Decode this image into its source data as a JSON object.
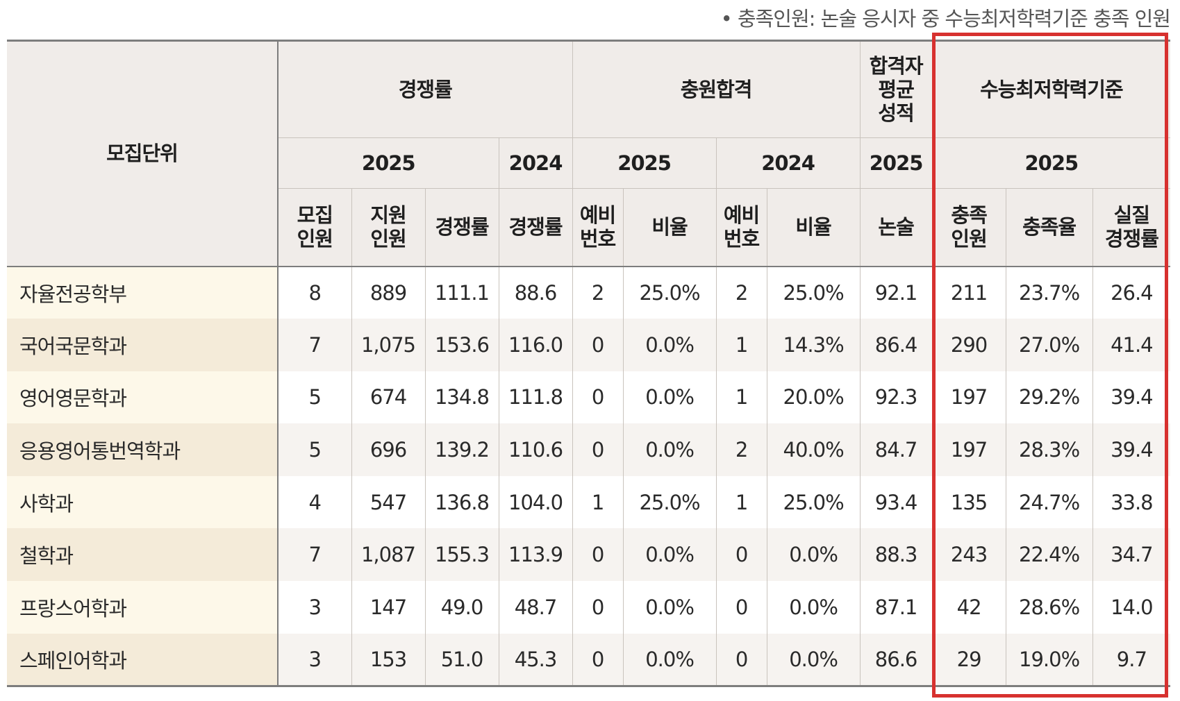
{
  "note": "• 충족인원: 논술 응시자 중 수능최저학력기준 충족 인원",
  "header": {
    "unit": "모집단위",
    "groups": [
      {
        "label": "경쟁률"
      },
      {
        "label": "충원합격"
      },
      {
        "label_lines": [
          "합격자",
          "평균",
          "성적"
        ]
      },
      {
        "label": "수능최저학력기준"
      }
    ],
    "years": [
      "2025",
      "2024",
      "2025",
      "2024",
      "2025",
      "2025"
    ],
    "columns": [
      {
        "lines": [
          "모집",
          "인원"
        ]
      },
      {
        "lines": [
          "지원",
          "인원"
        ]
      },
      {
        "lines": [
          "경쟁률"
        ]
      },
      {
        "lines": [
          "경쟁률"
        ]
      },
      {
        "lines": [
          "예비",
          "번호"
        ]
      },
      {
        "lines": [
          "비율"
        ]
      },
      {
        "lines": [
          "예비",
          "번호"
        ]
      },
      {
        "lines": [
          "비율"
        ]
      },
      {
        "lines": [
          "논술"
        ]
      },
      {
        "lines": [
          "충족",
          "인원"
        ]
      },
      {
        "lines": [
          "충족율"
        ]
      },
      {
        "lines": [
          "실질",
          "경쟁률"
        ]
      }
    ]
  },
  "rows": [
    {
      "unit": "자율전공학부",
      "cells": [
        "8",
        "889",
        "111.1",
        "88.6",
        "2",
        "25.0%",
        "2",
        "25.0%",
        "92.1",
        "211",
        "23.7%",
        "26.4"
      ]
    },
    {
      "unit": "국어국문학과",
      "cells": [
        "7",
        "1,075",
        "153.6",
        "116.0",
        "0",
        "0.0%",
        "1",
        "14.3%",
        "86.4",
        "290",
        "27.0%",
        "41.4"
      ]
    },
    {
      "unit": "영어영문학과",
      "cells": [
        "5",
        "674",
        "134.8",
        "111.8",
        "0",
        "0.0%",
        "1",
        "20.0%",
        "92.3",
        "197",
        "29.2%",
        "39.4"
      ]
    },
    {
      "unit": "응용영어통번역학과",
      "cells": [
        "5",
        "696",
        "139.2",
        "110.6",
        "0",
        "0.0%",
        "2",
        "40.0%",
        "84.7",
        "197",
        "28.3%",
        "39.4"
      ]
    },
    {
      "unit": "사학과",
      "cells": [
        "4",
        "547",
        "136.8",
        "104.0",
        "1",
        "25.0%",
        "1",
        "25.0%",
        "93.4",
        "135",
        "24.7%",
        "33.8"
      ]
    },
    {
      "unit": "철학과",
      "cells": [
        "7",
        "1,087",
        "155.3",
        "113.9",
        "0",
        "0.0%",
        "0",
        "0.0%",
        "88.3",
        "243",
        "22.4%",
        "34.7"
      ]
    },
    {
      "unit": "프랑스어학과",
      "cells": [
        "3",
        "147",
        "49.0",
        "48.7",
        "0",
        "0.0%",
        "0",
        "0.0%",
        "87.1",
        "42",
        "28.6%",
        "14.0"
      ]
    },
    {
      "unit": "스페인어학과",
      "cells": [
        "3",
        "153",
        "51.0",
        "45.3",
        "0",
        "0.0%",
        "0",
        "0.0%",
        "86.6",
        "29",
        "19.0%",
        "9.7"
      ]
    }
  ],
  "colors": {
    "header_bg": "#f0ece9",
    "unit_bg": "#fdf8e9",
    "highlight_border": "#d7312f"
  }
}
